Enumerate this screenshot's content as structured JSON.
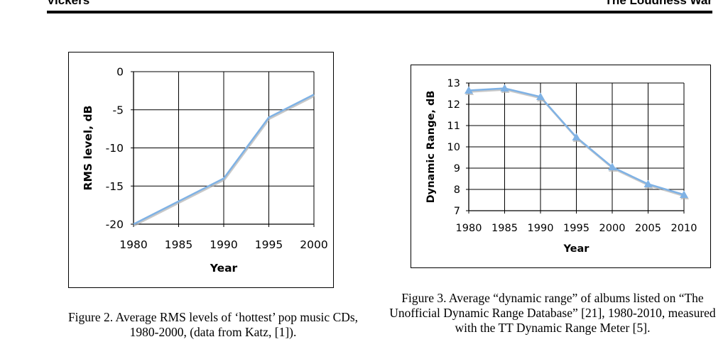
{
  "header": {
    "left": "Vickers",
    "right": "The Loudness War"
  },
  "colors": {
    "line": "#7fb2e5",
    "shadow": "#b0b0b0",
    "grid": "#000000"
  },
  "chart_data": [
    {
      "type": "line",
      "xlabel": "Year",
      "ylabel": "RMS level, dB",
      "x": [
        1980,
        1985,
        1990,
        1995,
        2000
      ],
      "ylim": [
        -20,
        0
      ],
      "yticks": [
        0,
        -5,
        -10,
        -15,
        -20
      ],
      "xticks": [
        1980,
        1985,
        1990,
        1995,
        2000
      ],
      "grid": true,
      "marker": "none",
      "series": [
        {
          "values": [
            -20,
            -17,
            -14,
            -6,
            -3
          ]
        }
      ]
    },
    {
      "type": "line",
      "xlabel": "Year",
      "ylabel": "Dynamic Range, dB",
      "x": [
        1980,
        1985,
        1990,
        1995,
        2000,
        2005,
        2010
      ],
      "ylim": [
        7,
        13
      ],
      "yticks": [
        13,
        12,
        11,
        10,
        9,
        8,
        7
      ],
      "xticks": [
        1980,
        1985,
        1990,
        1995,
        2000,
        2005,
        2010
      ],
      "grid": true,
      "marker": "triangle",
      "series": [
        {
          "values": [
            12.65,
            12.75,
            12.35,
            10.45,
            9.05,
            8.25,
            7.75
          ]
        }
      ]
    }
  ],
  "captions": {
    "fig2": "Figure 2. Average RMS levels of ‘hottest’ pop music CDs, 1980-2000, (data from Katz, [1]).",
    "fig3": "Figure 3. Average “dynamic range” of albums listed on “The Unofficial Dynamic Range Database” [21], 1980-2010, measured with the TT Dynamic Range Meter [5]."
  }
}
